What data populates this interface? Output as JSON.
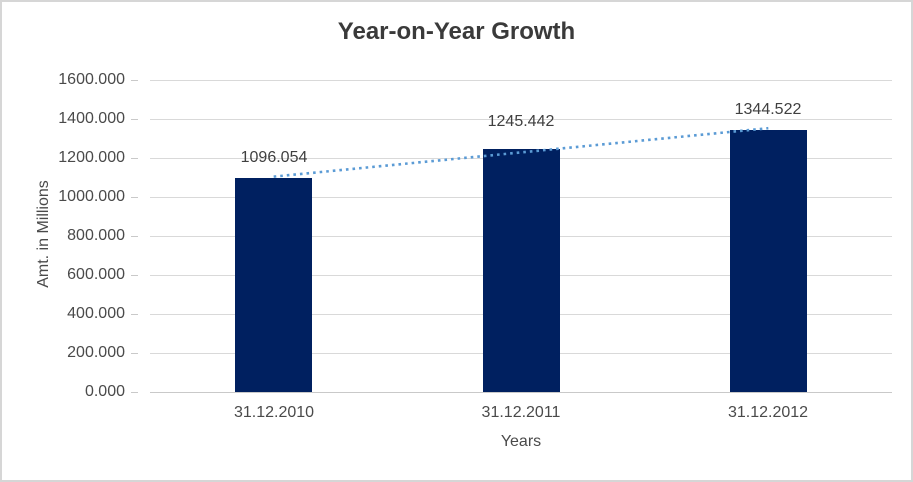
{
  "chart_data": {
    "type": "bar",
    "title": "Year-on-Year Growth",
    "xlabel": "Years",
    "ylabel": "Amt. in Millions",
    "categories": [
      "31.12.2010",
      "31.12.2011",
      "31.12.2012"
    ],
    "values": [
      1096.054,
      1245.442,
      1344.522
    ],
    "data_labels": [
      "1096.054",
      "1245.442",
      "1344.522"
    ],
    "ylim": [
      0,
      1600
    ],
    "ytick_step": 200,
    "ytick_labels": [
      "1600.000",
      "1400.000",
      "1200.000",
      "1000.000",
      "800.000",
      "600.000",
      "400.000",
      "200.000",
      "0.000"
    ],
    "grid": true,
    "legend": false,
    "colors": {
      "bar": "#002060",
      "trendline": "#5b9bd5",
      "gridline": "#d9d9d9",
      "axis_line": "#c9c9c9",
      "tick_text": "#4a4a4a",
      "title_text": "#3a3a3a"
    },
    "trendline": {
      "type": "linear",
      "style": "dotted"
    }
  }
}
